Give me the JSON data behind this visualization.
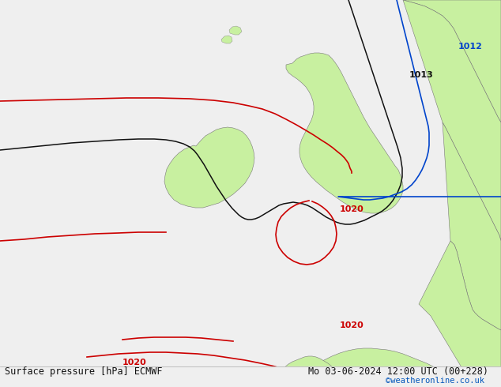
{
  "title_left": "Surface pressure [hPa] ECMWF",
  "title_right": "Mo 03-06-2024 12:00 UTC (00+228)",
  "credit": "©weatheronline.co.uk",
  "credit_color": "#0055bb",
  "bg_color": "#e6e6e6",
  "land_color": "#c8f0a0",
  "bar_color": "#efefef",
  "red": "#cc0000",
  "black": "#111111",
  "blue": "#0044cc",
  "title_fs": 8.5,
  "credit_fs": 7.5
}
